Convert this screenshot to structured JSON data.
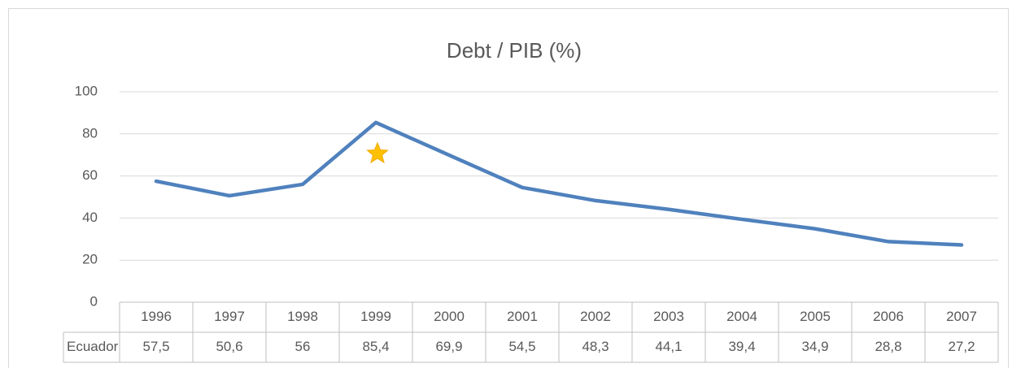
{
  "chart_data": {
    "type": "line",
    "title": "Debt / PIB (%)",
    "categories": [
      "1996",
      "1997",
      "1998",
      "1999",
      "2000",
      "2001",
      "2002",
      "2003",
      "2004",
      "2005",
      "2006",
      "2007"
    ],
    "series": [
      {
        "name": "Ecuador",
        "color": "#4f81bd",
        "values": [
          57.5,
          50.6,
          56,
          85.4,
          69.9,
          54.5,
          48.3,
          44.1,
          39.4,
          34.9,
          28.8,
          27.2
        ],
        "value_labels": [
          "57,5",
          "50,6",
          "56",
          "85,4",
          "69,9",
          "54,5",
          "48,3",
          "44,1",
          "39,4",
          "34,9",
          "28,8",
          "27,2"
        ]
      }
    ],
    "ylim": [
      0,
      100
    ],
    "yticks": [
      0,
      20,
      40,
      60,
      80,
      100
    ],
    "grid": true
  }
}
